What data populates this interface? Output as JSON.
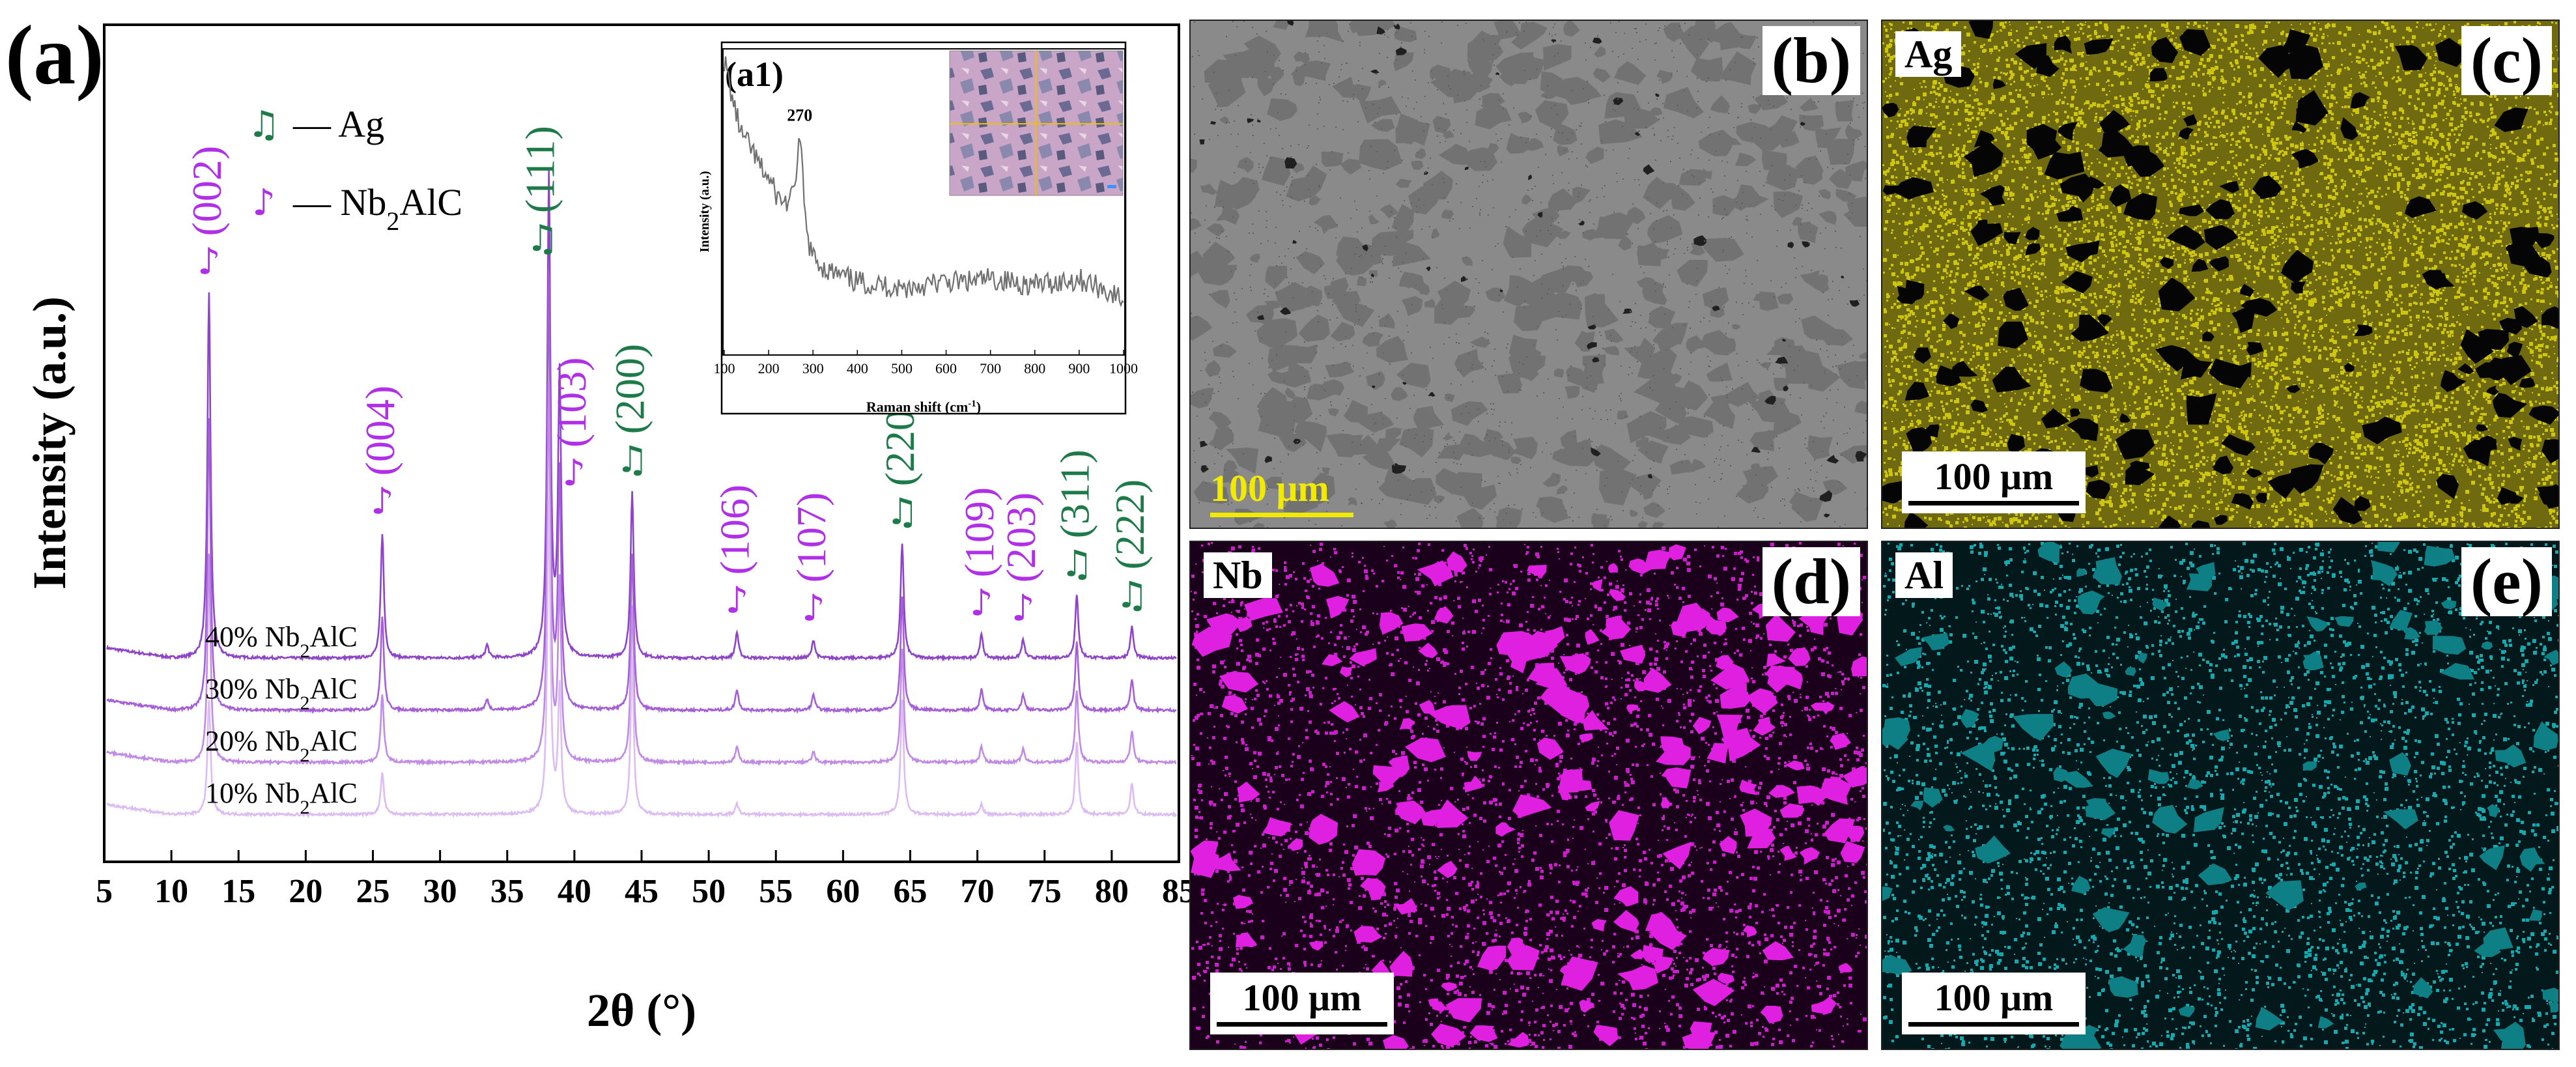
{
  "panel_labels": {
    "a": "(a)",
    "a1": "(a1)",
    "b": "(b)",
    "c": "(c)",
    "d": "(d)",
    "e": "(e)"
  },
  "eds": {
    "c": {
      "element": "Ag",
      "color": "#d8cf10",
      "scale": "100 μm"
    },
    "d": {
      "element": "Nb",
      "color": "#e020e0",
      "scale": "100 μm"
    },
    "e": {
      "element": "Al",
      "color": "#18b8c0",
      "scale": "100 μm"
    }
  },
  "sem_b": {
    "scale": "100 μm",
    "scale_color": "#f2ea00"
  },
  "colors": {
    "ag": "#1e7a48",
    "nb2alc": "#b030e8"
  },
  "chart_data": [
    {
      "type": "line",
      "xlabel": "2θ (°)",
      "ylabel": "Intensity (a.u.)",
      "xlim": [
        5,
        85
      ],
      "xticks": [
        5,
        10,
        15,
        20,
        25,
        30,
        35,
        40,
        45,
        50,
        55,
        60,
        65,
        70,
        75,
        80,
        85
      ],
      "y_ticks_shown": false,
      "legend": [
        {
          "symbol": "♫",
          "text": "— Ag",
          "phase": "Ag"
        },
        {
          "symbol": "♪",
          "text": "— Nb",
          "sub": "2",
          "tail": "AlC",
          "phase": "Nb2AlC"
        }
      ],
      "series": [
        {
          "name": "40% Nb2AlC",
          "label_main": "40% Nb",
          "label_sub": "2",
          "label_tail": "AlC",
          "color": "#8e44c8",
          "baseline": 3.0,
          "peaks": [
            [
              12.8,
              7.0
            ],
            [
              25.7,
              2.4
            ],
            [
              33.5,
              0.25
            ],
            [
              38.1,
              9.2
            ],
            [
              38.9,
              5.4
            ],
            [
              44.3,
              3.2
            ],
            [
              52.1,
              0.5
            ],
            [
              57.8,
              0.35
            ],
            [
              64.4,
              2.2
            ],
            [
              70.3,
              0.45
            ],
            [
              73.4,
              0.35
            ],
            [
              77.4,
              1.2
            ],
            [
              81.5,
              0.6
            ]
          ]
        },
        {
          "name": "30% Nb2AlC",
          "label_main": "30% Nb",
          "label_sub": "2",
          "label_tail": "AlC",
          "color": "#a45fd8",
          "baseline": 2.0,
          "peaks": [
            [
              12.8,
              5.6
            ],
            [
              25.7,
              1.8
            ],
            [
              33.5,
              0.2
            ],
            [
              38.1,
              8.2
            ],
            [
              38.9,
              4.5
            ],
            [
              44.3,
              3.0
            ],
            [
              52.1,
              0.4
            ],
            [
              57.8,
              0.3
            ],
            [
              64.4,
              2.2
            ],
            [
              70.3,
              0.4
            ],
            [
              73.4,
              0.3
            ],
            [
              77.4,
              1.3
            ],
            [
              81.5,
              0.6
            ]
          ]
        },
        {
          "name": "20% Nb2AlC",
          "label_main": "20% Nb",
          "label_sub": "2",
          "label_tail": "AlC",
          "color": "#c08ae6",
          "baseline": 1.0,
          "peaks": [
            [
              12.8,
              4.0
            ],
            [
              25.7,
              1.3
            ],
            [
              38.1,
              7.2
            ],
            [
              38.9,
              3.4
            ],
            [
              44.3,
              3.0
            ],
            [
              52.1,
              0.3
            ],
            [
              57.8,
              0.2
            ],
            [
              64.4,
              2.2
            ],
            [
              70.3,
              0.3
            ],
            [
              73.4,
              0.25
            ],
            [
              77.4,
              1.4
            ],
            [
              81.5,
              0.6
            ]
          ]
        },
        {
          "name": "10% Nb2AlC",
          "label_main": "10% Nb",
          "label_sub": "2",
          "label_tail": "AlC",
          "color": "#dcbcf2",
          "baseline": 0.0,
          "peaks": [
            [
              12.8,
              2.2
            ],
            [
              25.7,
              0.8
            ],
            [
              38.1,
              6.0
            ],
            [
              38.9,
              2.4
            ],
            [
              44.3,
              3.0
            ],
            [
              52.1,
              0.2
            ],
            [
              64.4,
              2.2
            ],
            [
              70.3,
              0.2
            ],
            [
              77.4,
              1.4
            ],
            [
              81.5,
              0.6
            ]
          ]
        }
      ],
      "peak_labels": [
        {
          "hkl": "(002)",
          "x": 12.8,
          "phase": "Nb2AlC"
        },
        {
          "hkl": "(004)",
          "x": 25.7,
          "phase": "Nb2AlC"
        },
        {
          "hkl": "(111)",
          "x": 38.1,
          "phase": "Ag"
        },
        {
          "hkl": "(103)",
          "x": 38.9,
          "phase": "Nb2AlC"
        },
        {
          "hkl": "(200)",
          "x": 44.3,
          "phase": "Ag"
        },
        {
          "hkl": "(106)",
          "x": 52.1,
          "phase": "Nb2AlC"
        },
        {
          "hkl": "(107)",
          "x": 57.8,
          "phase": "Nb2AlC"
        },
        {
          "hkl": "(220)",
          "x": 64.4,
          "phase": "Ag"
        },
        {
          "hkl": "(109)",
          "x": 70.3,
          "phase": "Nb2AlC"
        },
        {
          "hkl": "(203)",
          "x": 73.4,
          "phase": "Nb2AlC"
        },
        {
          "hkl": "(311)",
          "x": 77.4,
          "phase": "Ag"
        },
        {
          "hkl": "(222)",
          "x": 81.5,
          "phase": "Ag"
        }
      ]
    },
    {
      "type": "line",
      "title": "(a1)",
      "xlabel": "Raman shift (cm",
      "xlabel_sup": "-1",
      "xlabel_tail": ")",
      "ylabel": "Intensity (a.u.)",
      "xlim": [
        100,
        1000
      ],
      "xticks": [
        100,
        200,
        300,
        400,
        500,
        600,
        700,
        800,
        900,
        1000
      ],
      "annotation": {
        "text": "270",
        "x": 270
      },
      "series": [
        {
          "name": "Raman",
          "x": [
            100,
            120,
            140,
            160,
            180,
            200,
            220,
            240,
            255,
            265,
            270,
            275,
            285,
            300,
            330,
            360,
            400,
            450,
            500,
            550,
            600,
            650,
            700,
            750,
            800,
            850,
            900,
            950,
            1000
          ],
          "y": [
            0.97,
            0.83,
            0.72,
            0.68,
            0.62,
            0.58,
            0.52,
            0.5,
            0.52,
            0.64,
            0.72,
            0.62,
            0.4,
            0.32,
            0.28,
            0.26,
            0.24,
            0.23,
            0.22,
            0.23,
            0.24,
            0.24,
            0.25,
            0.24,
            0.23,
            0.24,
            0.25,
            0.22,
            0.18
          ]
        }
      ]
    }
  ]
}
